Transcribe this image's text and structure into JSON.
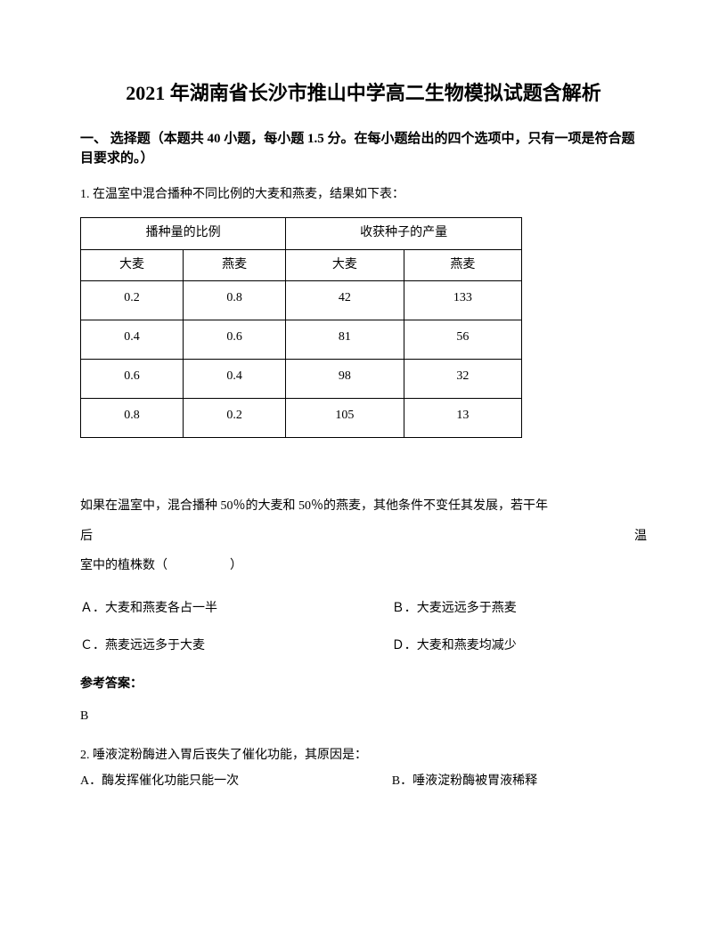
{
  "title": "2021 年湖南省长沙市推山中学高二生物模拟试题含解析",
  "section_header": "一、 选择题（本题共 40 小题，每小题 1.5 分。在每小题给出的四个选项中，只有一项是符合题目要求的。）",
  "q1": {
    "stem": "1. 在温室中混合播种不同比例的大麦和燕麦，结果如下表：",
    "table": {
      "headers": [
        "播种量的比例",
        "收获种子的产量"
      ],
      "sub_headers": [
        "大麦",
        "燕麦",
        "大麦",
        "燕麦"
      ],
      "rows": [
        [
          "0.2",
          "0.8",
          "42",
          "133"
        ],
        [
          "0.4",
          "0.6",
          "81",
          "56"
        ],
        [
          "0.6",
          "0.4",
          "98",
          "32"
        ],
        [
          "0.8",
          "0.2",
          "105",
          "13"
        ]
      ],
      "col_widths": [
        "25%",
        "25%",
        "25%",
        "25%"
      ],
      "border_color": "#000000",
      "font_size": 14
    },
    "post_line1_left": "如果在温室中，混合播种 50％的大麦和 50％的燕麦，其他条件不变任其发展，若干年",
    "post_line2_left": "后",
    "post_line2_right": "温",
    "post_line3": "室中的植株数（　　　　　）",
    "options": {
      "A": "Ａ．大麦和燕麦各占一半",
      "B": "Ｂ．大麦远远多于燕麦",
      "C": "Ｃ．燕麦远远多于大麦",
      "D": "Ｄ．大麦和燕麦均减少"
    },
    "answer_label": "参考答案：",
    "answer": "B"
  },
  "q2": {
    "stem": "2. 唾液淀粉酶进入胃后丧失了催化功能，其原因是：",
    "options": {
      "A": "A．酶发挥催化功能只能一次",
      "B": "B．唾液淀粉酶被胃液稀释"
    }
  },
  "colors": {
    "text": "#000000",
    "background": "#ffffff"
  }
}
